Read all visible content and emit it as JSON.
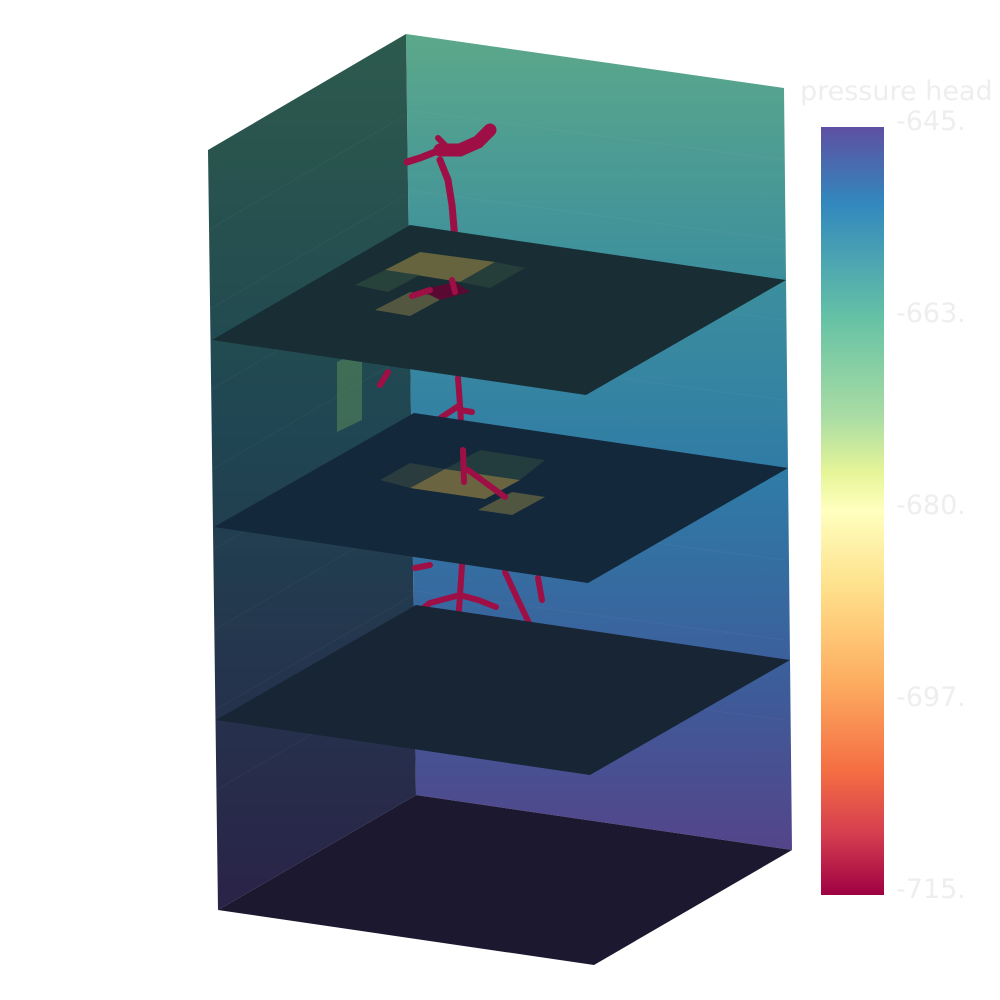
{
  "colorbar": {
    "title": "pressure head",
    "ticks": [
      "-645.",
      "-663.",
      "-680.",
      "-697.",
      "-715."
    ],
    "colors": [
      "#5e4fa2",
      "#3288bd",
      "#66c2a5",
      "#abdda4",
      "#e6f598",
      "#ffffbf",
      "#fee08b",
      "#fdae61",
      "#f46d43",
      "#d53e4f",
      "#9e0142"
    ]
  },
  "scene": {
    "box_wall_colors": {
      "left_top": "#2d5a4d",
      "left_bottom": "#2a2348",
      "back_top": "#5ca88a",
      "back_mid": "#2f7aa6",
      "back_bottom": "#54448a"
    },
    "slice_color": "#172535",
    "bottom_color": "#1c1830",
    "root_color": "#9e0f45",
    "soil_highlight_color": "#7a7042"
  }
}
